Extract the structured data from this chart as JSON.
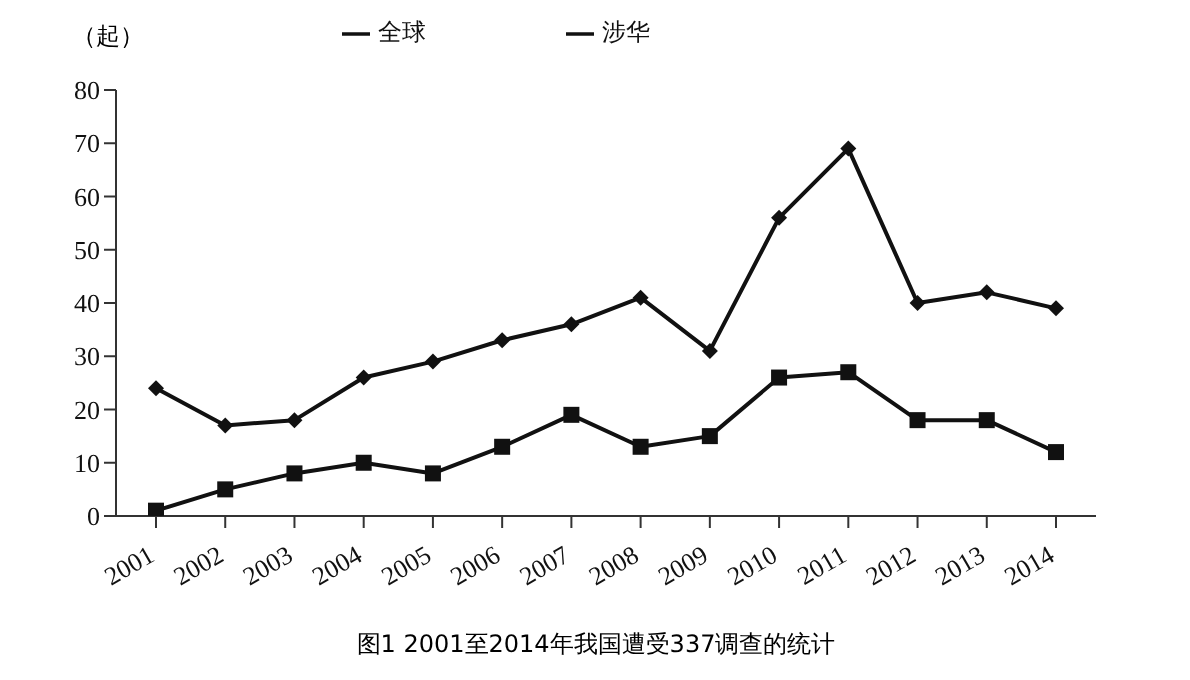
{
  "chart_data": {
    "type": "line",
    "title": "图1 2001至2014年我国遭受337调查的统计",
    "ylabel": "（起）",
    "categories": [
      "2001",
      "2002",
      "2003",
      "2004",
      "2005",
      "2006",
      "2007",
      "2008",
      "2009",
      "2010",
      "2011",
      "2012",
      "2013",
      "2014"
    ],
    "series": [
      {
        "name": "全球",
        "color": "#111111",
        "marker": "diamond",
        "values": [
          24,
          17,
          18,
          26,
          29,
          33,
          36,
          41,
          31,
          56,
          69,
          40,
          42,
          39
        ]
      },
      {
        "name": "涉华",
        "color": "#111111",
        "marker": "square",
        "values": [
          1,
          5,
          8,
          10,
          8,
          13,
          19,
          13,
          15,
          26,
          27,
          18,
          18,
          12
        ]
      }
    ],
    "ylim": [
      0,
      80
    ],
    "yticks": [
      0,
      10,
      20,
      30,
      40,
      50,
      60,
      70,
      80
    ],
    "grid": false,
    "legend": "top",
    "line_style": "solid"
  }
}
